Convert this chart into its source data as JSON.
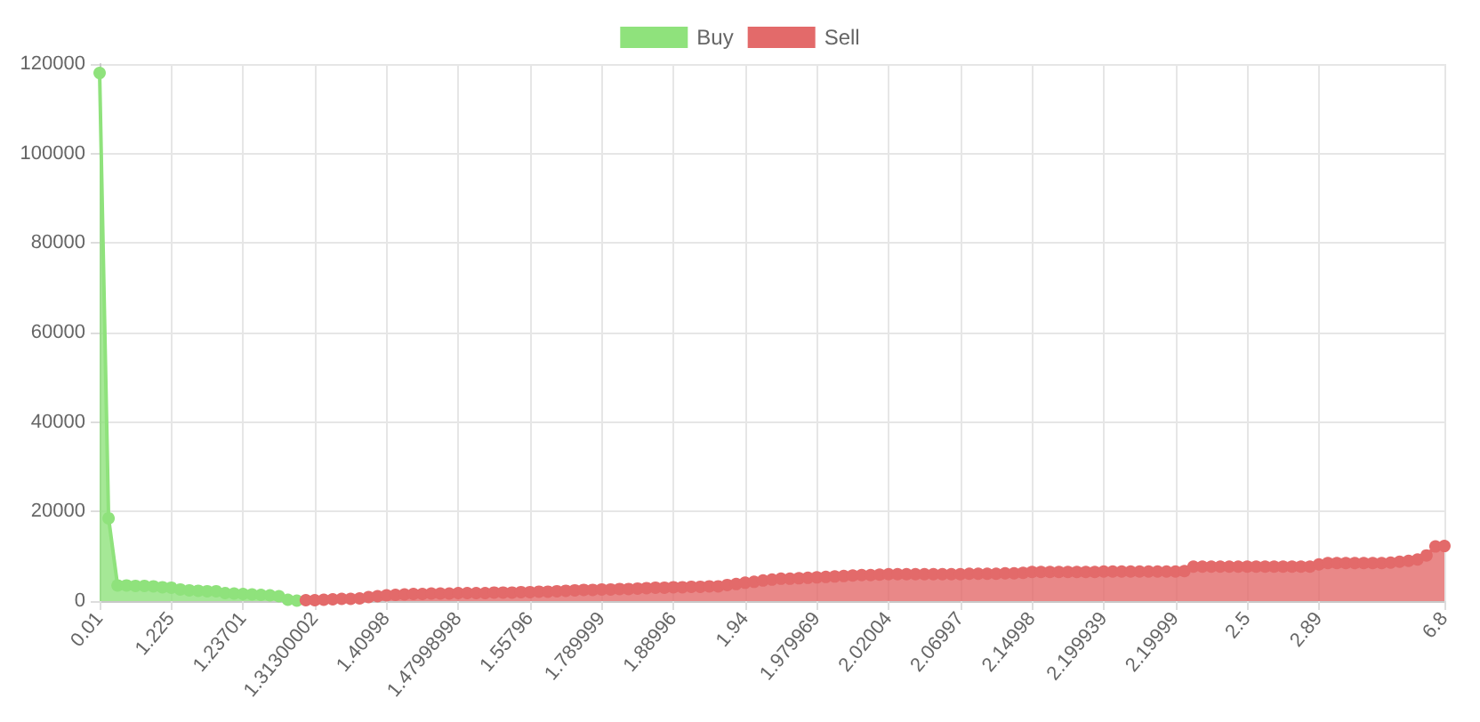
{
  "chart_data": {
    "type": "area",
    "categories": [
      "0.01",
      null,
      null,
      null,
      null,
      null,
      null,
      null,
      "1.225",
      null,
      null,
      null,
      null,
      null,
      null,
      null,
      "1.23701",
      null,
      null,
      null,
      null,
      null,
      null,
      null,
      "1.31300002",
      null,
      null,
      null,
      null,
      null,
      null,
      null,
      "1.40998",
      null,
      null,
      null,
      null,
      null,
      null,
      null,
      "1.47998998",
      null,
      null,
      null,
      null,
      null,
      null,
      null,
      "1.55796",
      null,
      null,
      null,
      null,
      null,
      null,
      null,
      "1.789999",
      null,
      null,
      null,
      null,
      null,
      null,
      null,
      "1.88996",
      null,
      null,
      null,
      null,
      null,
      null,
      null,
      "1.94",
      null,
      null,
      null,
      null,
      null,
      null,
      null,
      "1.979969",
      null,
      null,
      null,
      null,
      null,
      null,
      null,
      "2.02004",
      null,
      null,
      null,
      null,
      null,
      null,
      null,
      "2.06997",
      null,
      null,
      null,
      null,
      null,
      null,
      null,
      "2.14998",
      null,
      null,
      null,
      null,
      null,
      null,
      null,
      "2.199939",
      null,
      null,
      null,
      null,
      null,
      null,
      null,
      "2.19999",
      null,
      null,
      null,
      null,
      null,
      null,
      null,
      "2.5",
      null,
      null,
      null,
      null,
      null,
      null,
      null,
      "2.89",
      null,
      null,
      null,
      null,
      null,
      null,
      null,
      null,
      null,
      null,
      null,
      null,
      null,
      "6.8"
    ],
    "series": [
      {
        "name": "Buy",
        "color": "#8fe27c",
        "values": [
          118000,
          18500,
          3500,
          3500,
          3400,
          3400,
          3300,
          3100,
          3000,
          2600,
          2400,
          2300,
          2200,
          2200,
          1800,
          1700,
          1600,
          1500,
          1400,
          1300,
          1100,
          300,
          100,
          null,
          null,
          null,
          null,
          null,
          null,
          null,
          null,
          null,
          null,
          null,
          null,
          null,
          null,
          null,
          null,
          null,
          null,
          null,
          null,
          null,
          null,
          null,
          null,
          null,
          null,
          null,
          null,
          null,
          null,
          null,
          null,
          null,
          null,
          null,
          null,
          null,
          null,
          null,
          null,
          null,
          null,
          null,
          null,
          null,
          null,
          null,
          null,
          null,
          null,
          null,
          null,
          null,
          null,
          null,
          null,
          null,
          null,
          null,
          null,
          null,
          null,
          null,
          null,
          null,
          null,
          null,
          null,
          null,
          null,
          null,
          null,
          null,
          null,
          null,
          null,
          null,
          null,
          null,
          null,
          null,
          null,
          null,
          null,
          null,
          null,
          null,
          null,
          null,
          null,
          null,
          null,
          null,
          null,
          null,
          null,
          null,
          null,
          null,
          null,
          null,
          null,
          null,
          null,
          null,
          null,
          null,
          null,
          null,
          null,
          null,
          null,
          null,
          null,
          null,
          null,
          null,
          null,
          null,
          null,
          null,
          null,
          null,
          null,
          null,
          null,
          null,
          null
        ]
      },
      {
        "name": "Sell",
        "color": "#e36a6a",
        "values": [
          null,
          null,
          null,
          null,
          null,
          null,
          null,
          null,
          null,
          null,
          null,
          null,
          null,
          null,
          null,
          null,
          null,
          null,
          null,
          null,
          null,
          null,
          null,
          200,
          200,
          300,
          400,
          500,
          500,
          600,
          900,
          1100,
          1300,
          1400,
          1500,
          1600,
          1600,
          1700,
          1700,
          1700,
          1800,
          1800,
          1800,
          1800,
          1900,
          1900,
          1900,
          2000,
          2000,
          2100,
          2100,
          2200,
          2300,
          2400,
          2500,
          2500,
          2600,
          2600,
          2700,
          2700,
          2800,
          2900,
          3000,
          3000,
          3100,
          3100,
          3200,
          3200,
          3300,
          3300,
          3600,
          3800,
          4100,
          4300,
          4600,
          4800,
          5000,
          5000,
          5100,
          5200,
          5300,
          5400,
          5500,
          5600,
          5700,
          5800,
          5800,
          5900,
          6000,
          6000,
          6000,
          6000,
          6000,
          6000,
          6000,
          6000,
          6000,
          6100,
          6100,
          6100,
          6100,
          6200,
          6200,
          6300,
          6500,
          6500,
          6500,
          6500,
          6500,
          6500,
          6500,
          6500,
          6600,
          6600,
          6600,
          6600,
          6600,
          6600,
          6600,
          6600,
          6600,
          6700,
          7700,
          7700,
          7700,
          7700,
          7700,
          7700,
          7700,
          7700,
          7700,
          7700,
          7700,
          7700,
          7700,
          7700,
          8200,
          8500,
          8500,
          8500,
          8500,
          8500,
          8500,
          8500,
          8600,
          8800,
          9000,
          9300,
          10200,
          12200,
          12300
        ]
      }
    ],
    "ylim": [
      0,
      120000
    ],
    "yticks": [
      0,
      20000,
      40000,
      60000,
      80000,
      100000,
      120000
    ],
    "grid": true,
    "legend": "top",
    "marker": "circle"
  }
}
